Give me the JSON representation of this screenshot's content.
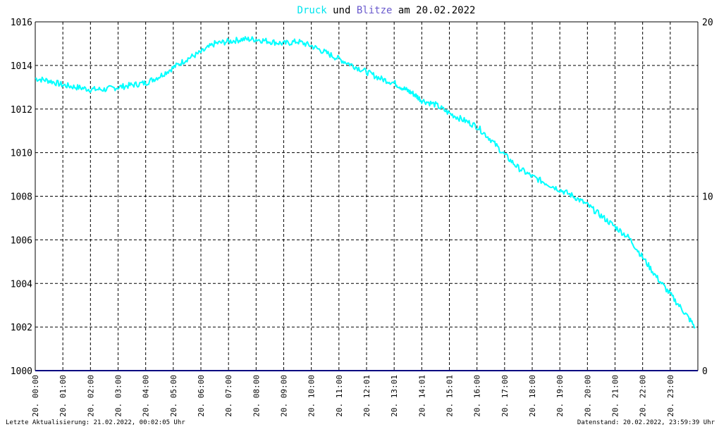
{
  "chart_data": {
    "type": "line",
    "title": {
      "part1": "Druck",
      "part2": " und ",
      "part3": "Blitze",
      "part4": " am 20.02.2022"
    },
    "x_tick_labels": [
      "20. 00:00",
      "20. 01:00",
      "20. 02:00",
      "20. 03:00",
      "20. 04:00",
      "20. 05:00",
      "20. 06:00",
      "20. 07:00",
      "20. 08:00",
      "20. 09:00",
      "20. 10:00",
      "20. 11:00",
      "20. 12:01",
      "20. 13:01",
      "20. 14:01",
      "20. 15:01",
      "20. 16:00",
      "20. 17:00",
      "20. 18:00",
      "20. 19:00",
      "20. 20:00",
      "20. 21:00",
      "20. 22:00",
      "20. 23:00"
    ],
    "x_unit": "hours",
    "xlim": [
      0,
      24
    ],
    "left_axis": {
      "ylim": [
        1000,
        1016
      ],
      "ticks": [
        "1000",
        "1002",
        "1004",
        "1006",
        "1008",
        "1010",
        "1012",
        "1014",
        "1016"
      ]
    },
    "right_axis": {
      "ylim": [
        0,
        20
      ],
      "ticks": [
        "0",
        "10",
        "20"
      ]
    },
    "grid": true,
    "series": [
      {
        "name": "Druck",
        "color": "#00ffff",
        "axis": "left",
        "x": [
          0,
          0.5,
          1,
          1.5,
          2,
          2.5,
          3,
          3.5,
          4,
          4.5,
          5,
          5.5,
          6,
          6.5,
          7,
          7.5,
          8,
          8.5,
          9,
          9.5,
          10,
          10.5,
          11,
          11.5,
          12,
          12.5,
          13,
          13.4,
          13.7,
          14,
          14.5,
          15,
          15.5,
          16,
          16.5,
          17,
          17.5,
          18,
          18.5,
          19,
          19.5,
          20,
          20.5,
          21,
          21.5,
          22,
          22.5,
          23,
          23.5,
          23.9
        ],
        "values": [
          1013.4,
          1013.3,
          1013.1,
          1013.0,
          1012.9,
          1012.9,
          1013.0,
          1013.1,
          1013.2,
          1013.5,
          1013.9,
          1014.3,
          1014.6,
          1015.0,
          1015.1,
          1015.2,
          1015.2,
          1015.1,
          1015.0,
          1015.1,
          1014.9,
          1014.6,
          1014.3,
          1014.0,
          1013.7,
          1013.4,
          1013.2,
          1012.9,
          1012.7,
          1012.4,
          1012.2,
          1011.8,
          1011.5,
          1011.2,
          1010.6,
          1009.9,
          1009.3,
          1008.9,
          1008.6,
          1008.3,
          1008.0,
          1007.6,
          1007.1,
          1006.6,
          1006.1,
          1005.2,
          1004.3,
          1003.5,
          1002.7,
          1002.0
        ]
      },
      {
        "name": "Blitze",
        "color": "#6a5acd",
        "line_color": "#000080",
        "axis": "right",
        "x": [
          0,
          24
        ],
        "values": [
          0,
          0
        ]
      }
    ]
  },
  "footer": {
    "left": "Letzte Aktualisierung: 21.02.2022, 00:02:05 Uhr",
    "right": "Datenstand: 20.02.2022, 23:59:39 Uhr"
  }
}
